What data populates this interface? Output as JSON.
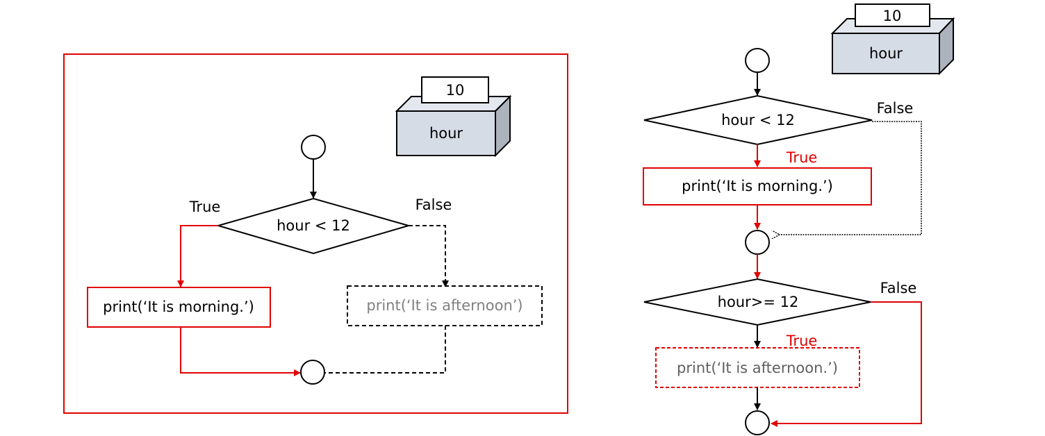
{
  "left": {
    "variable": {
      "value": "10",
      "name": "hour"
    },
    "condition": "hour < 12",
    "true_label": "True",
    "false_label": "False",
    "true_action": "print(‘It is morning.’)",
    "false_action": "print(‘It is afternoon’)"
  },
  "right": {
    "variable": {
      "value": "10",
      "name": "hour"
    },
    "condition1": "hour < 12",
    "false1_label": "False",
    "true1_label": "True",
    "action1": "print(‘It is morning.’)",
    "condition2": "hour>= 12",
    "false2_label": "False",
    "true2_label": "True",
    "action2": "print(‘It is afternoon.’)"
  },
  "colors": {
    "active": "#e00000",
    "inactive_text": "#808080",
    "box_front": "#d6dce5",
    "box_top": "#e3e7ee",
    "box_side": "#adb3bd"
  }
}
